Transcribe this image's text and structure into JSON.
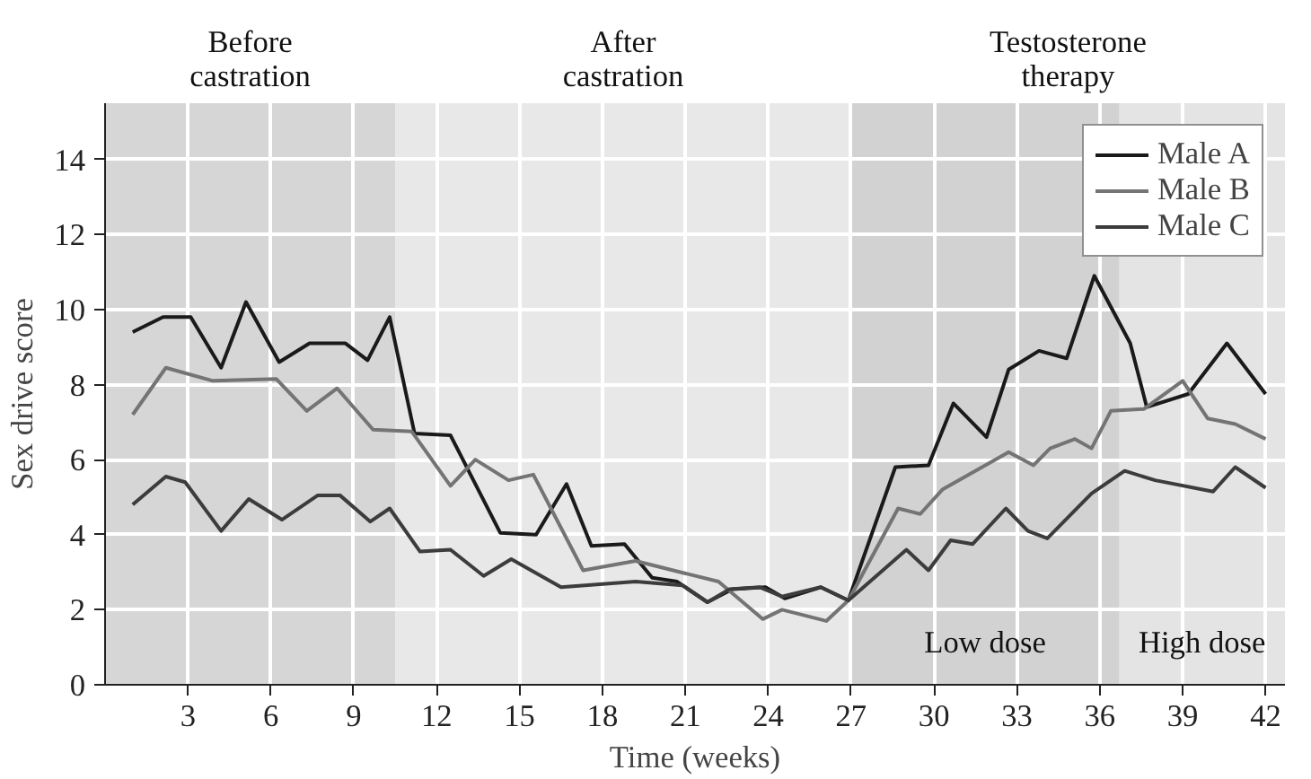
{
  "chart_data": {
    "type": "line",
    "xlabel": "Time (weeks)",
    "ylabel": "Sex drive score",
    "xlim": [
      0,
      42.7
    ],
    "ylim": [
      0,
      15.5
    ],
    "xticks": [
      3,
      6,
      9,
      12,
      15,
      18,
      21,
      24,
      27,
      30,
      33,
      36,
      39,
      42
    ],
    "yticks": [
      0,
      2,
      4,
      6,
      8,
      10,
      12,
      14
    ],
    "grid": true,
    "legend": "top right",
    "line_style": "solid",
    "series": [
      {
        "name": "Male A",
        "color": "#1a1a1a",
        "x": [
          1,
          2.1,
          3.1,
          4.2,
          5.1,
          6.3,
          7.4,
          8.7,
          9.5,
          10.3,
          11.2,
          12.5,
          14.3,
          15.6,
          16.7,
          17.6,
          18.8,
          19.8,
          20.7,
          21.8,
          22.7,
          23.9,
          24.6,
          25.9,
          26.9,
          28.6,
          29.8,
          30.7,
          31.9,
          32.7,
          33.8,
          34.8,
          35.8,
          37.1,
          37.7,
          39.2,
          40.6,
          42
        ],
        "values": [
          9.4,
          9.8,
          9.8,
          8.45,
          10.2,
          8.6,
          9.1,
          9.1,
          8.65,
          9.8,
          6.7,
          6.65,
          4.05,
          4.0,
          5.35,
          3.7,
          3.75,
          2.85,
          2.75,
          2.2,
          2.55,
          2.6,
          2.3,
          2.6,
          2.25,
          5.8,
          5.85,
          7.5,
          6.6,
          8.4,
          8.9,
          8.7,
          10.9,
          9.1,
          7.4,
          7.75,
          9.1,
          7.75
        ]
      },
      {
        "name": "Male B",
        "color": "#747474",
        "x": [
          1,
          2.2,
          3.9,
          6.2,
          7.3,
          8.4,
          9.7,
          11.1,
          12.5,
          13.4,
          14.6,
          15.5,
          17.3,
          19.2,
          21.1,
          22.2,
          23.8,
          24.5,
          26.1,
          26.9,
          28.7,
          29.5,
          30.3,
          32.7,
          33.6,
          34.2,
          35.1,
          35.7,
          36.4,
          37.6,
          39,
          39.9,
          40.9,
          42
        ],
        "values": [
          7.2,
          8.45,
          8.1,
          8.15,
          7.3,
          7.9,
          6.8,
          6.75,
          5.3,
          6.0,
          5.45,
          5.6,
          3.05,
          3.3,
          2.95,
          2.75,
          1.75,
          2.0,
          1.7,
          2.25,
          4.7,
          4.55,
          5.2,
          6.2,
          5.85,
          6.3,
          6.55,
          6.3,
          7.3,
          7.35,
          8.1,
          7.1,
          6.95,
          6.55
        ]
      },
      {
        "name": "Male C",
        "color": "#3c3c3c",
        "x": [
          1,
          2.2,
          2.9,
          4.2,
          5.2,
          6.4,
          7.7,
          8.5,
          9.6,
          10.3,
          11.4,
          12.5,
          13.7,
          14.7,
          16.5,
          19.2,
          20.9,
          21.8,
          22.6,
          23.7,
          24.5,
          25.9,
          26.9,
          29,
          29.8,
          30.6,
          31.4,
          32.6,
          33.4,
          34.1,
          35.7,
          36.9,
          38,
          40.1,
          40.9,
          42
        ],
        "values": [
          4.8,
          5.55,
          5.4,
          4.1,
          4.95,
          4.4,
          5.05,
          5.05,
          4.35,
          4.7,
          3.55,
          3.6,
          2.9,
          3.35,
          2.6,
          2.75,
          2.65,
          2.2,
          2.55,
          2.6,
          2.35,
          2.6,
          2.25,
          3.6,
          3.05,
          3.85,
          3.75,
          4.7,
          4.1,
          3.9,
          5.1,
          5.7,
          5.45,
          5.15,
          5.8,
          5.25
        ]
      }
    ],
    "bands": [
      {
        "axis": "x",
        "from": 0,
        "to": 10.5,
        "label": "Before\ncastration",
        "color": "#d6d6d6"
      },
      {
        "axis": "x",
        "from": 10.5,
        "to": 27,
        "label": "After\ncastration",
        "color": "#e8e8e8"
      },
      {
        "axis": "x",
        "from": 27,
        "to": 42.7,
        "label": "Testosterone\ntherapy",
        "color": "#dcdcdc"
      },
      {
        "axis": "x",
        "from": 27,
        "to": 36.7,
        "label": "Low dose",
        "color": "#d2d2d2"
      },
      {
        "axis": "x",
        "from": 36.7,
        "to": 42.7,
        "label": "High dose",
        "color": "#e4e4e4"
      }
    ]
  }
}
